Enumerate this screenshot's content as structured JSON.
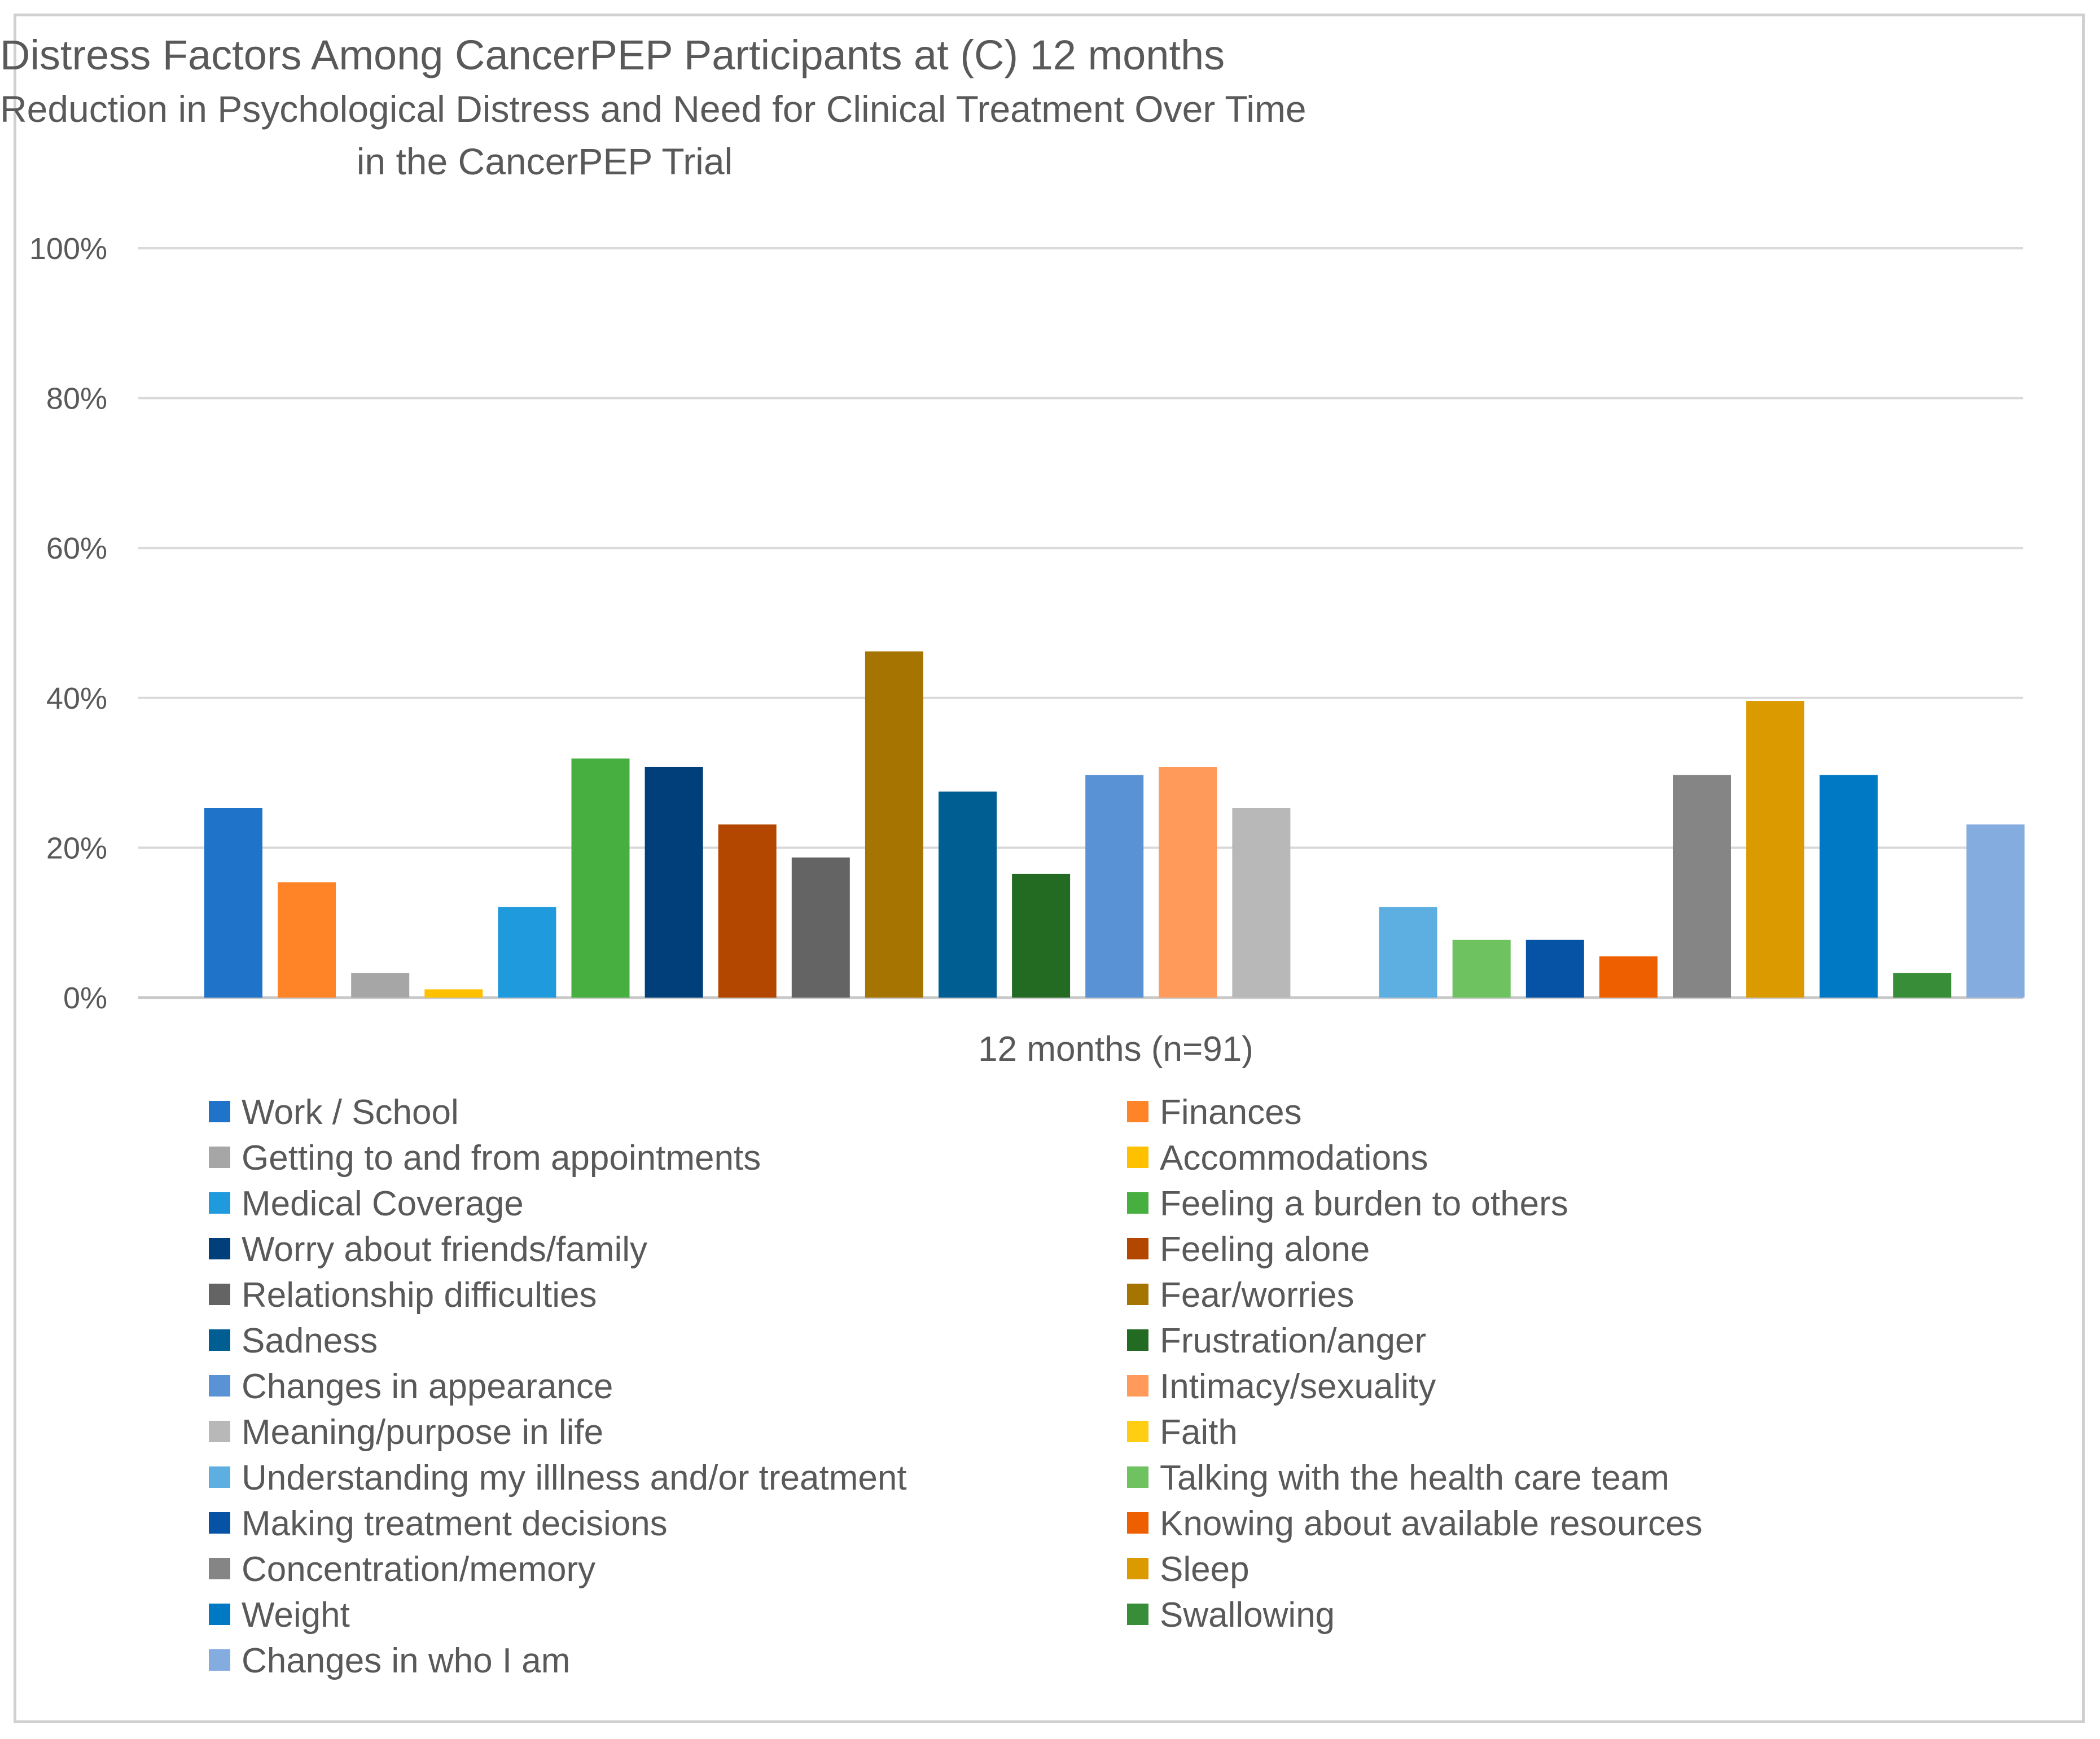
{
  "chart_data": {
    "type": "bar",
    "title": "Distress Factors Among CancerPEP Participants at (C) 12 months",
    "subtitle": [
      "Reduction in Psychological Distress and Need for Clinical Treatment Over Time",
      "in the CancerPEP Trial"
    ],
    "categories": [
      "12 months (n=91)"
    ],
    "xlabel": "",
    "ylabel": "",
    "ylim": [
      0,
      100
    ],
    "yticks": [
      "0%",
      "20%",
      "40%",
      "60%",
      "80%",
      "100%"
    ],
    "grid": true,
    "legend_position": "bottom",
    "series": [
      {
        "name": "Work / School",
        "value": 25.3,
        "color": "#1F73C8"
      },
      {
        "name": "Finances",
        "value": 15.4,
        "color": "#FF8428"
      },
      {
        "name": "Getting to and from appointments",
        "value": 3.3,
        "color": "#A6A6A6"
      },
      {
        "name": "Accommodations",
        "value": 1.1,
        "color": "#FFC000"
      },
      {
        "name": "Medical Coverage",
        "value": 12.1,
        "color": "#1F9ADC"
      },
      {
        "name": "Feeling a burden to others",
        "value": 31.9,
        "color": "#46AF3F"
      },
      {
        "name": "Worry about friends/family",
        "value": 30.8,
        "color": "#003F7A"
      },
      {
        "name": "Feeling alone",
        "value": 23.1,
        "color": "#B34700"
      },
      {
        "name": "Relationship difficulties",
        "value": 18.7,
        "color": "#646464"
      },
      {
        "name": "Fear/worries",
        "value": 46.2,
        "color": "#A67400"
      },
      {
        "name": "Sadness",
        "value": 27.5,
        "color": "#005E93"
      },
      {
        "name": "Frustration/anger",
        "value": 16.5,
        "color": "#236B23"
      },
      {
        "name": "Changes in appearance",
        "value": 29.7,
        "color": "#5A92D6"
      },
      {
        "name": "Intimacy/sexuality",
        "value": 30.8,
        "color": "#FF9A5A"
      },
      {
        "name": "Meaning/purpose in life",
        "value": 25.3,
        "color": "#B8B8B8"
      },
      {
        "name": "Faith",
        "value": 0,
        "color": "#FFCD12"
      },
      {
        "name": "Understanding my illlness and/or treatment",
        "value": 12.1,
        "color": "#5DAFE2"
      },
      {
        "name": "Talking with the health care team",
        "value": 7.7,
        "color": "#6EC260"
      },
      {
        "name": "Making treatment decisions",
        "value": 7.7,
        "color": "#0653A5"
      },
      {
        "name": "Knowing about available resources",
        "value": 5.5,
        "color": "#EE5F00"
      },
      {
        "name": "Concentration/memory",
        "value": 29.7,
        "color": "#858585"
      },
      {
        "name": "Sleep",
        "value": 39.6,
        "color": "#DB9B00"
      },
      {
        "name": "Weight",
        "value": 29.7,
        "color": "#0079C5"
      },
      {
        "name": "Swallowing",
        "value": 3.3,
        "color": "#388E38"
      },
      {
        "name": "Changes in who I am",
        "value": 23.1,
        "color": "#84ACDF"
      }
    ]
  }
}
